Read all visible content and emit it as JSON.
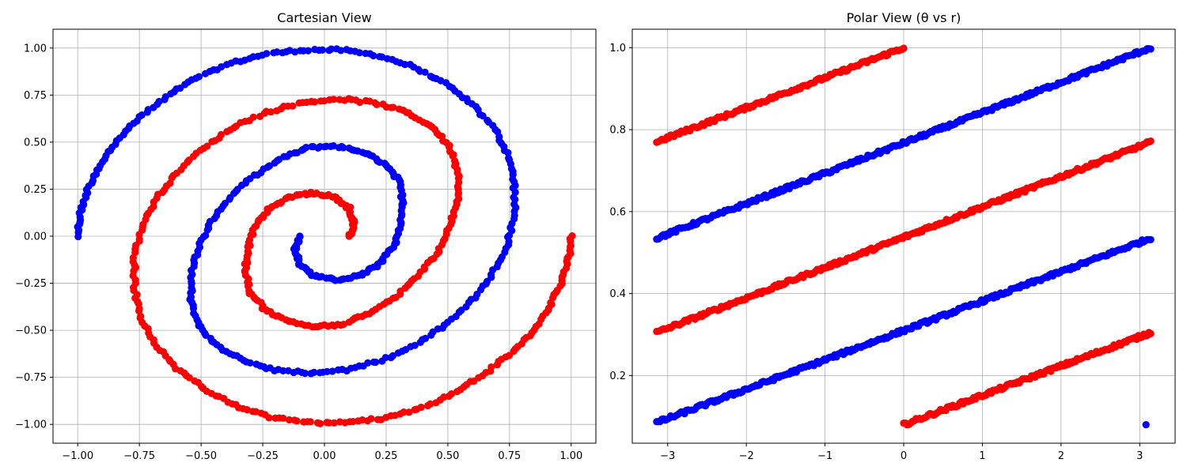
{
  "chart_data": [
    {
      "type": "scatter",
      "title": "Cartesian View",
      "xlabel": "",
      "ylabel": "",
      "xlim": [
        -1.1,
        1.1
      ],
      "ylim": [
        -1.1,
        1.1
      ],
      "grid": true,
      "xticks": [
        -1.0,
        -0.75,
        -0.5,
        -0.25,
        0.0,
        0.25,
        0.5,
        0.75,
        1.0
      ],
      "yticks": [
        -1.0,
        -0.75,
        -0.5,
        -0.25,
        0.0,
        0.25,
        0.5,
        0.75,
        1.0
      ],
      "xtick_labels": [
        "−1.00",
        "−0.75",
        "−0.50",
        "−0.25",
        "0.00",
        "0.25",
        "0.50",
        "0.75",
        "1.00"
      ],
      "ytick_labels": [
        "−1.00",
        "−0.75",
        "−0.50",
        "−0.25",
        "0.00",
        "0.25",
        "0.50",
        "0.75",
        "1.00"
      ],
      "series": [
        {
          "color": "#0000ff",
          "points": [
            [
              -1.0,
              0.0
            ],
            [
              -0.99,
              0.12
            ],
            [
              -0.96,
              0.25
            ],
            [
              -0.91,
              0.38
            ],
            [
              -0.84,
              0.51
            ],
            [
              -0.75,
              0.63
            ],
            [
              -0.64,
              0.74
            ],
            [
              -0.52,
              0.84
            ],
            [
              -0.38,
              0.92
            ],
            [
              -0.23,
              0.97
            ],
            [
              -0.08,
              0.99
            ],
            [
              0.07,
              0.99
            ],
            [
              0.22,
              0.96
            ],
            [
              0.36,
              0.9
            ],
            [
              0.49,
              0.81
            ],
            [
              0.6,
              0.7
            ],
            [
              0.69,
              0.57
            ],
            [
              0.75,
              0.42
            ],
            [
              0.77,
              0.27
            ],
            [
              0.77,
              0.11
            ],
            [
              0.74,
              -0.05
            ],
            [
              0.68,
              -0.2
            ],
            [
              0.6,
              -0.34
            ],
            [
              0.49,
              -0.47
            ],
            [
              0.37,
              -0.58
            ],
            [
              0.23,
              -0.66
            ],
            [
              0.09,
              -0.71
            ],
            [
              -0.06,
              -0.73
            ],
            [
              -0.2,
              -0.71
            ],
            [
              -0.33,
              -0.66
            ],
            [
              -0.44,
              -0.58
            ],
            [
              -0.51,
              -0.47
            ],
            [
              -0.54,
              -0.34
            ],
            [
              -0.54,
              -0.2
            ],
            [
              -0.51,
              -0.06
            ],
            [
              -0.46,
              0.08
            ],
            [
              -0.38,
              0.21
            ],
            [
              -0.29,
              0.32
            ],
            [
              -0.18,
              0.41
            ],
            [
              -0.07,
              0.47
            ],
            [
              0.04,
              0.48
            ],
            [
              0.15,
              0.45
            ],
            [
              0.24,
              0.39
            ],
            [
              0.3,
              0.3
            ],
            [
              0.32,
              0.18
            ],
            [
              0.31,
              0.06
            ],
            [
              0.28,
              -0.06
            ],
            [
              0.22,
              -0.15
            ],
            [
              0.14,
              -0.21
            ],
            [
              0.05,
              -0.23
            ],
            [
              -0.04,
              -0.21
            ],
            [
              -0.1,
              -0.15
            ],
            [
              -0.12,
              -0.07
            ],
            [
              -0.1,
              0.0
            ]
          ]
        },
        {
          "color": "#ff0000",
          "points": [
            [
              1.0,
              0.0
            ],
            [
              0.99,
              -0.12
            ],
            [
              0.96,
              -0.25
            ],
            [
              0.91,
              -0.38
            ],
            [
              0.84,
              -0.51
            ],
            [
              0.75,
              -0.63
            ],
            [
              0.64,
              -0.74
            ],
            [
              0.52,
              -0.84
            ],
            [
              0.38,
              -0.92
            ],
            [
              0.23,
              -0.97
            ],
            [
              0.08,
              -0.99
            ],
            [
              -0.07,
              -0.99
            ],
            [
              -0.22,
              -0.96
            ],
            [
              -0.36,
              -0.9
            ],
            [
              -0.49,
              -0.81
            ],
            [
              -0.6,
              -0.7
            ],
            [
              -0.69,
              -0.57
            ],
            [
              -0.75,
              -0.42
            ],
            [
              -0.77,
              -0.27
            ],
            [
              -0.77,
              -0.11
            ],
            [
              -0.74,
              0.05
            ],
            [
              -0.68,
              0.2
            ],
            [
              -0.6,
              0.34
            ],
            [
              -0.49,
              0.47
            ],
            [
              -0.37,
              0.58
            ],
            [
              -0.23,
              0.66
            ],
            [
              -0.09,
              0.71
            ],
            [
              0.06,
              0.73
            ],
            [
              0.2,
              0.71
            ],
            [
              0.33,
              0.66
            ],
            [
              0.44,
              0.58
            ],
            [
              0.51,
              0.47
            ],
            [
              0.54,
              0.34
            ],
            [
              0.54,
              0.2
            ],
            [
              0.51,
              0.06
            ],
            [
              0.46,
              -0.08
            ],
            [
              0.38,
              -0.21
            ],
            [
              0.29,
              -0.32
            ],
            [
              0.18,
              -0.41
            ],
            [
              0.07,
              -0.47
            ],
            [
              -0.04,
              -0.48
            ],
            [
              -0.15,
              -0.45
            ],
            [
              -0.24,
              -0.39
            ],
            [
              -0.3,
              -0.3
            ],
            [
              -0.32,
              -0.18
            ],
            [
              -0.31,
              -0.06
            ],
            [
              -0.28,
              0.06
            ],
            [
              -0.22,
              0.15
            ],
            [
              -0.14,
              0.21
            ],
            [
              -0.05,
              0.23
            ],
            [
              0.04,
              0.21
            ],
            [
              0.1,
              0.15
            ],
            [
              0.12,
              0.07
            ],
            [
              0.1,
              0.0
            ]
          ]
        }
      ]
    },
    {
      "type": "scatter",
      "title": "Polar View (θ vs r)",
      "xlabel": "",
      "ylabel": "",
      "xlim": [
        -3.45,
        3.45
      ],
      "ylim": [
        0.035,
        1.045
      ],
      "grid": true,
      "xticks": [
        -3,
        -2,
        -1,
        0,
        1,
        2,
        3
      ],
      "yticks": [
        0.2,
        0.4,
        0.6,
        0.8,
        1.0
      ],
      "xtick_labels": [
        "−3",
        "−2",
        "−1",
        "0",
        "1",
        "2",
        "3"
      ],
      "ytick_labels": [
        "0.2",
        "0.4",
        "0.6",
        "0.8",
        "1.0"
      ],
      "series": [
        {
          "color": "#ff0000",
          "segments": [
            [
              [
                -3.14,
                0.77
              ],
              [
                0.0,
                1.0
              ]
            ],
            [
              [
                -3.14,
                0.305
              ],
              [
                3.14,
                0.77
              ]
            ],
            [
              [
                0.0,
                0.08
              ],
              [
                3.14,
                0.305
              ]
            ]
          ]
        },
        {
          "color": "#0000ff",
          "segments": [
            [
              [
                -3.14,
                0.535
              ],
              [
                3.14,
                1.0
              ]
            ],
            [
              [
                -3.14,
                0.085
              ],
              [
                3.14,
                0.535
              ]
            ],
            [
              [
                3.08,
                0.08
              ],
              [
                3.08,
                0.08
              ]
            ]
          ]
        }
      ]
    }
  ]
}
